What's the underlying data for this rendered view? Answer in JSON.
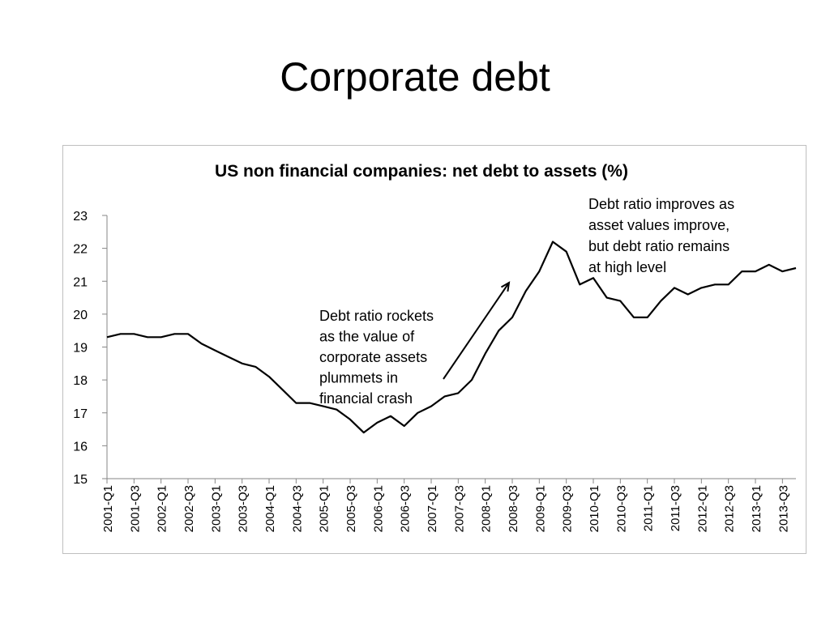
{
  "slide": {
    "title": "Corporate debt"
  },
  "chart_data": {
    "type": "line",
    "title": "US non financial companies: net debt to assets (%)",
    "xlabel": "",
    "ylabel": "",
    "ylim": [
      15,
      23
    ],
    "y_ticks": [
      15,
      16,
      17,
      18,
      19,
      20,
      21,
      22,
      23
    ],
    "grid": false,
    "legend": "none",
    "line_color": "#000000",
    "x": [
      "2001-Q1",
      "2001-Q2",
      "2001-Q3",
      "2001-Q4",
      "2002-Q1",
      "2002-Q2",
      "2002-Q3",
      "2002-Q4",
      "2003-Q1",
      "2003-Q2",
      "2003-Q3",
      "2003-Q4",
      "2004-Q1",
      "2004-Q2",
      "2004-Q3",
      "2004-Q4",
      "2005-Q1",
      "2005-Q2",
      "2005-Q3",
      "2005-Q4",
      "2006-Q1",
      "2006-Q2",
      "2006-Q3",
      "2006-Q4",
      "2007-Q1",
      "2007-Q2",
      "2007-Q3",
      "2007-Q4",
      "2008-Q1",
      "2008-Q2",
      "2008-Q3",
      "2008-Q4",
      "2009-Q1",
      "2009-Q2",
      "2009-Q3",
      "2009-Q4",
      "2010-Q1",
      "2010-Q2",
      "2010-Q3",
      "2010-Q4",
      "2011-Q1",
      "2011-Q2",
      "2011-Q3",
      "2011-Q4",
      "2012-Q1",
      "2012-Q2",
      "2012-Q3",
      "2012-Q4",
      "2013-Q1",
      "2013-Q2",
      "2013-Q3",
      "2013-Q4"
    ],
    "x_tick_labels": [
      "2001-Q1",
      "2001-Q3",
      "2002-Q1",
      "2002-Q3",
      "2003-Q1",
      "2003-Q3",
      "2004-Q1",
      "2004-Q3",
      "2005-Q1",
      "2005-Q3",
      "2006-Q1",
      "2006-Q3",
      "2007-Q1",
      "2007-Q3",
      "2008-Q1",
      "2008-Q3",
      "2009-Q1",
      "2009-Q3",
      "2010-Q1",
      "2010-Q3",
      "2011-Q1",
      "2011-Q3",
      "2012-Q1",
      "2012-Q3",
      "2013-Q1",
      "2013-Q3"
    ],
    "values": [
      19.3,
      19.4,
      19.4,
      19.3,
      19.3,
      19.4,
      19.4,
      19.1,
      18.9,
      18.7,
      18.5,
      18.4,
      18.1,
      17.7,
      17.3,
      17.3,
      17.2,
      17.1,
      16.8,
      16.4,
      16.7,
      16.9,
      16.6,
      17.0,
      17.2,
      17.5,
      17.6,
      18.0,
      18.8,
      19.5,
      19.9,
      20.7,
      21.3,
      22.2,
      21.9,
      20.9,
      21.1,
      20.5,
      20.4,
      19.9,
      19.9,
      20.4,
      20.8,
      20.6,
      20.8,
      20.9,
      20.9,
      21.3,
      21.3,
      21.5,
      21.3,
      21.4
    ],
    "annotations": [
      {
        "id": "crash",
        "lines": [
          "Debt ratio rockets",
          "as the value of",
          "corporate assets",
          "plummets in",
          "financial crash"
        ]
      },
      {
        "id": "recovery",
        "lines": [
          "Debt ratio improves as",
          "asset values improve,",
          "but debt ratio remains",
          "at high level"
        ]
      }
    ]
  }
}
